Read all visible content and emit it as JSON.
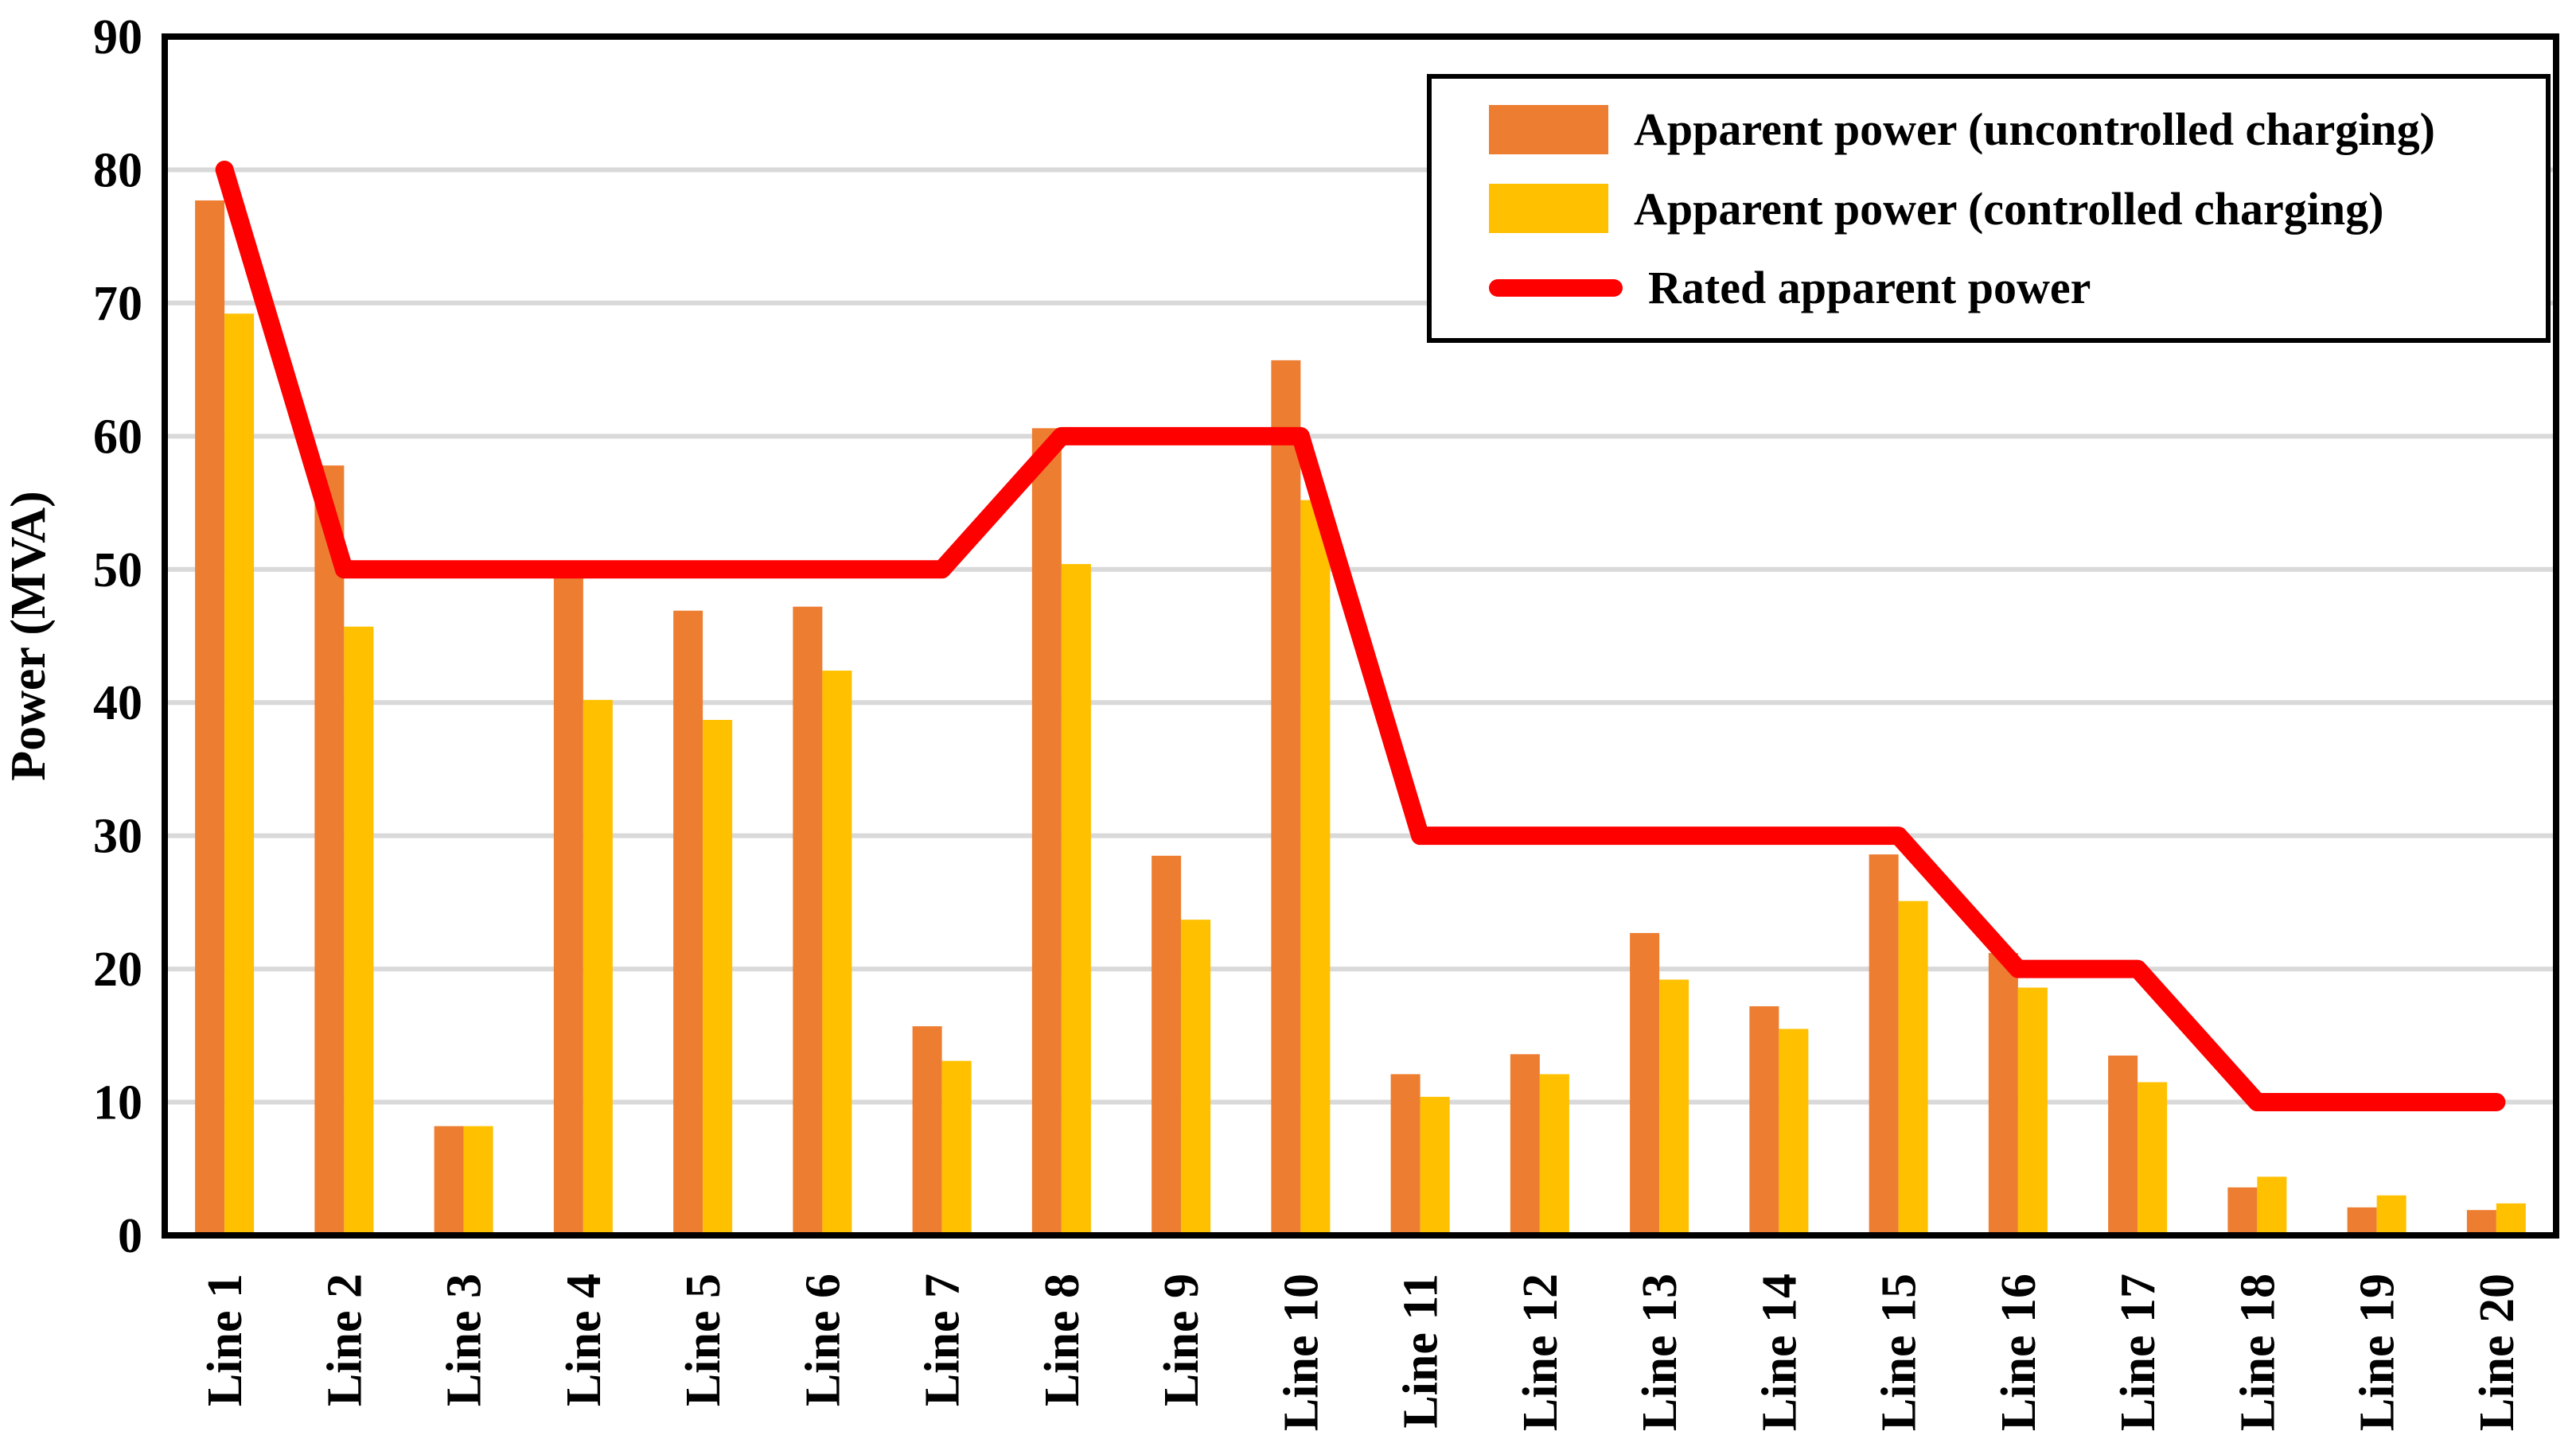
{
  "chart_data": {
    "type": "bar+line",
    "title": "",
    "xlabel": "",
    "ylabel": "Power (MVA)",
    "ylim": [
      0,
      90
    ],
    "yticks": [
      0,
      10,
      20,
      30,
      40,
      50,
      60,
      70,
      80,
      90
    ],
    "grid": true,
    "legend_position": "top-right",
    "categories": [
      "Line 1",
      "Line 2",
      "Line 3",
      "Line 4",
      "Line 5",
      "Line 6",
      "Line 7",
      "Line 8",
      "Line 9",
      "Line 10",
      "Line 11",
      "Line 12",
      "Line 13",
      "Line 14",
      "Line 15",
      "Line 16",
      "Line 17",
      "Line 18",
      "Line 19",
      "Line 20"
    ],
    "series": [
      {
        "name": "Apparent power (uncontrolled charging)",
        "kind": "bar",
        "color": "#ED7D31",
        "values": [
          77.7,
          57.8,
          8.2,
          49.8,
          46.9,
          47.2,
          15.7,
          60.6,
          28.5,
          65.7,
          12.1,
          13.6,
          22.7,
          17.2,
          28.6,
          21.2,
          13.5,
          3.6,
          2.1,
          1.9
        ]
      },
      {
        "name": "Apparent power (controlled charging)",
        "kind": "bar",
        "color": "#FFC000",
        "values": [
          69.2,
          45.7,
          8.2,
          40.2,
          38.7,
          42.4,
          13.1,
          50.4,
          23.7,
          55.2,
          10.4,
          12.1,
          19.2,
          15.5,
          25.1,
          18.6,
          11.5,
          4.4,
          3.0,
          2.4
        ]
      },
      {
        "name": "Rated apparent power",
        "kind": "line",
        "color": "#FF0000",
        "values": [
          80,
          50,
          50,
          50,
          50,
          50,
          50,
          60,
          60,
          60,
          30,
          30,
          30,
          30,
          30,
          20,
          20,
          10,
          10,
          10
        ]
      }
    ],
    "colors": {
      "gridline": "#D9D9D9",
      "axis": "#000000",
      "background": "#FFFFFF"
    }
  }
}
